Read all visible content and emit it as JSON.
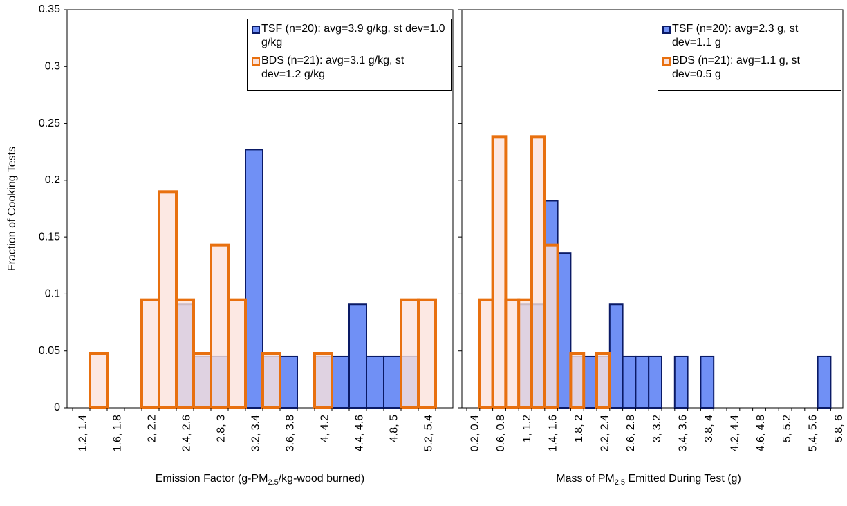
{
  "chart_data": [
    {
      "type": "bar",
      "ylabel": "Fraction of Cooking Tests",
      "xlabel": [
        "Emission Factor (g-PM",
        "2.5",
        "/kg-wood burned)"
      ],
      "categories": [
        "1.2, 1.4",
        null,
        "1.6, 1.8",
        null,
        "2, 2.2",
        null,
        "2.4, 2.6",
        null,
        "2.8, 3",
        null,
        "3.2, 3.4",
        null,
        "3.6, 3.8",
        null,
        "4, 4.2",
        null,
        "4.4, 4.6",
        null,
        "4.8, 5",
        null,
        "5.2, 5.4",
        null
      ],
      "series": [
        {
          "name": "TSF (n=20): avg=3.9 g/kg, st dev=1.0 g/kg",
          "color": "#7090f5",
          "edgecolor": "#0a1a66",
          "values": [
            0,
            0,
            0,
            0,
            0,
            0,
            0.091,
            0.045,
            0.045,
            0,
            0.227,
            0.045,
            0.045,
            0,
            0.045,
            0.045,
            0.091,
            0.045,
            0.045,
            0.045,
            0,
            0
          ]
        },
        {
          "name": "BDS (n=21): avg=3.1 g/kg, st dev=1.2 g/kg",
          "color": "#fbe2dc",
          "edgecolor": "#e8700f",
          "values": [
            0,
            0.048,
            0,
            0,
            0.095,
            0.19,
            0.095,
            0.048,
            0.143,
            0.095,
            0,
            0.048,
            0,
            0,
            0.048,
            0,
            0,
            0,
            0,
            0.095,
            0.095,
            0
          ]
        }
      ],
      "ylim": [
        0,
        0.35
      ],
      "yticks": [
        0,
        0.05,
        0.1,
        0.15,
        0.2,
        0.25,
        0.3,
        0.35
      ],
      "ytick_labels": true
    },
    {
      "type": "bar",
      "xlabel": [
        "Mass of PM",
        "2.5",
        " Emitted During Test (g)"
      ],
      "categories": [
        "0.2, 0.4",
        null,
        "0.6, 0.8",
        null,
        "1, 1.2",
        null,
        "1.4, 1.6",
        null,
        "1.8, 2",
        null,
        "2.2, 2.4",
        null,
        "2.6, 2.8",
        null,
        "3, 3.2",
        null,
        "3.4, 3.6",
        null,
        "3.8, 4",
        null,
        "4.2, 4.4",
        null,
        "4.6, 4.8",
        null,
        "5, 5.2",
        null,
        "5.4, 5.6",
        null,
        "5.8, 6"
      ],
      "series": [
        {
          "name": "TSF (n=20): avg=2.3 g, st dev=1.1 g",
          "color": "#7090f5",
          "edgecolor": "#0a1a66",
          "values": [
            0,
            0,
            0,
            0,
            0.091,
            0.091,
            0.182,
            0.136,
            0.045,
            0.045,
            0.045,
            0.091,
            0.045,
            0.045,
            0.045,
            0,
            0.045,
            0,
            0.045,
            0,
            0,
            0,
            0,
            0,
            0,
            0,
            0,
            0.045,
            0
          ]
        },
        {
          "name": "BDS (n=21): avg=1.1 g, st dev=0.5 g",
          "color": "#fbe2dc",
          "edgecolor": "#e8700f",
          "values": [
            0,
            0.095,
            0.238,
            0.095,
            0.095,
            0.238,
            0.143,
            0,
            0.048,
            0,
            0.048,
            0,
            0,
            0,
            0,
            0,
            0,
            0,
            0,
            0,
            0,
            0,
            0,
            0,
            0,
            0,
            0,
            0,
            0
          ]
        }
      ],
      "ylim": [
        0,
        0.35
      ],
      "yticks": [
        0,
        0.05,
        0.1,
        0.15,
        0.2,
        0.25,
        0.3,
        0.35
      ],
      "ytick_labels": false
    }
  ]
}
